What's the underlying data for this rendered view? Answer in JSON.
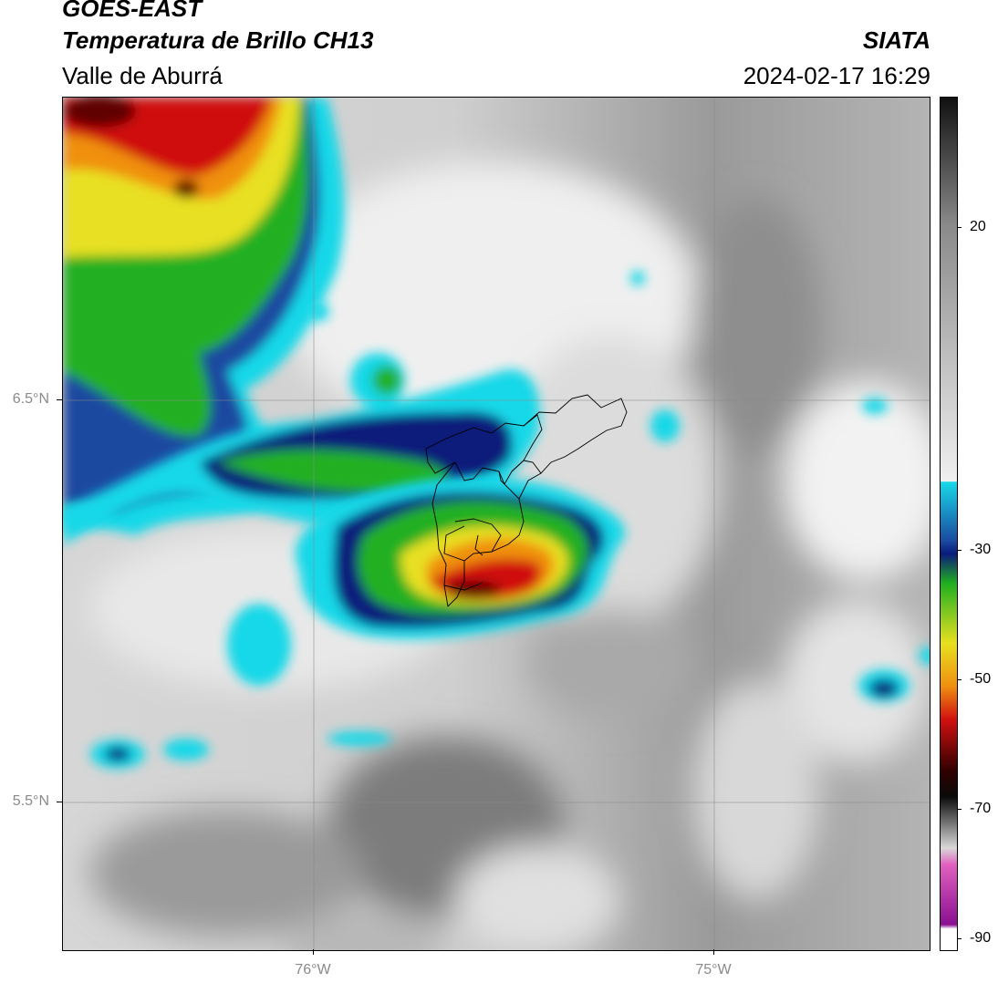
{
  "header": {
    "satellite": "GOES-EAST",
    "product": "Temperatura de Brillo CH13",
    "region": "Valle de Aburrá",
    "organization": "SIATA",
    "timestamp": "2024-02-17 16:29"
  },
  "map": {
    "lat_labels": [
      "6.5°N",
      "5.5°N"
    ],
    "lon_labels": [
      "76°W",
      "75°W"
    ],
    "colors": {
      "gray_light": "#e6e6e6",
      "gray_mid": "#a0a0a0",
      "cyan": "#18d8e8",
      "blue": "#1a4aa0",
      "navy": "#0a1a7a",
      "green": "#20b020",
      "yellow": "#e8e020",
      "orange": "#f09010",
      "red": "#d01010",
      "dark_red": "#600000"
    }
  },
  "colorbar": {
    "tick_labels": [
      "20",
      "-30",
      "-50",
      "-70",
      "-90"
    ],
    "ticks": [
      20,
      -30,
      -50,
      -70,
      -90
    ]
  }
}
